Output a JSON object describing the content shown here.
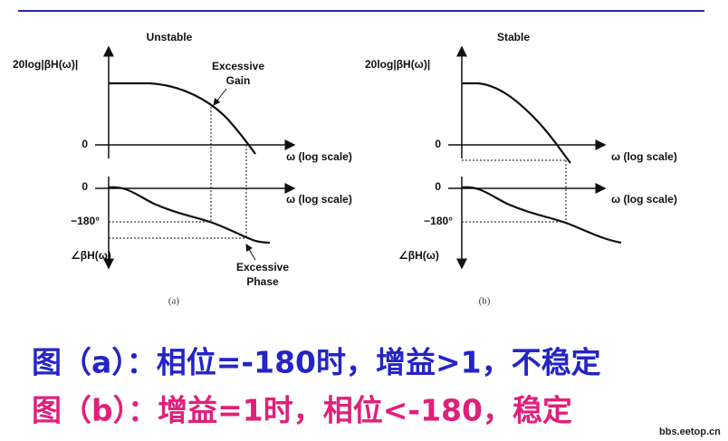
{
  "panels": [
    {
      "title": "Unstable",
      "magnitude_label": "20log|βH(ω)|",
      "magnitude_zero": "0",
      "magnitude_axis": "ω (log scale)",
      "annotation_gain": [
        "Excessive",
        "Gain"
      ],
      "phase_zero": "0",
      "phase_axis": "ω (log scale)",
      "phase_level": "−180°",
      "phase_label": "∠βH(ω)",
      "annotation_phase": [
        "Excessive",
        "Phase"
      ],
      "caption": "(a)"
    },
    {
      "title": "Stable",
      "magnitude_label": "20log|βH(ω)|",
      "magnitude_zero": "0",
      "magnitude_axis": "ω (log scale)",
      "phase_zero": "0",
      "phase_axis": "ω (log scale)",
      "phase_level": "−180°",
      "phase_label": "∠βH(ω)",
      "caption": "(b)"
    }
  ],
  "notes": [
    "图（a）：相位=-180时，增益>1，不稳定",
    "图（b）：增益=1时，相位<-180，稳定"
  ],
  "watermark": "bbs.eetop.cn"
}
